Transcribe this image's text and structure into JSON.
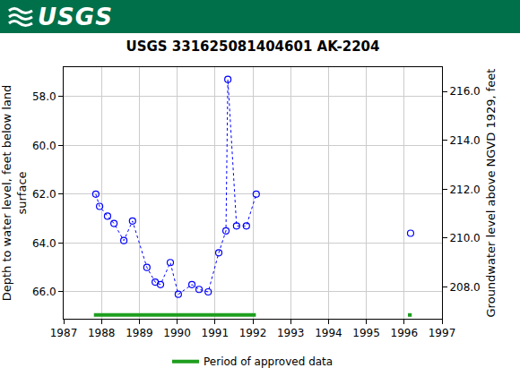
{
  "header": "USGS",
  "chart_data": {
    "type": "scatter",
    "title": "USGS 331625081404601 AK-2204",
    "y_label": [
      "Depth to water level, feet below land",
      "surface"
    ],
    "y2_label": "Groundwater level above NGVD 1929, feet",
    "x": [
      1987.85,
      1987.95,
      1988.16,
      1988.33,
      1988.59,
      1988.82,
      1989.2,
      1989.42,
      1989.56,
      1989.82,
      1990.03,
      1990.39,
      1990.58,
      1990.82,
      1991.1,
      1991.29,
      1991.34,
      1991.57,
      1991.83,
      1992.09,
      null,
      1996.17
    ],
    "values": [
      62.0,
      62.5,
      62.9,
      63.2,
      63.9,
      63.1,
      65.0,
      65.6,
      65.7,
      64.8,
      66.1,
      65.7,
      65.9,
      66.0,
      64.4,
      63.5,
      57.3,
      63.3,
      63.3,
      62.0,
      null,
      63.6
    ],
    "color": "#0000ff",
    "marker": "open-circle",
    "line_style": "dotted",
    "xlim": [
      1987,
      1997
    ],
    "xticks": [
      1987,
      1988,
      1989,
      1990,
      1991,
      1992,
      1993,
      1994,
      1995,
      1996,
      1997
    ],
    "ylim": [
      67.1,
      56.8
    ],
    "yticks": [
      {
        "value": 58,
        "label": "58.0"
      },
      {
        "value": 60,
        "label": "60.0"
      },
      {
        "value": 62,
        "label": "62.0"
      },
      {
        "value": 64,
        "label": "64.0"
      },
      {
        "value": 66,
        "label": "66.0"
      }
    ],
    "y2lim": [
      206.7,
      217.0
    ],
    "y2ticks": [
      {
        "value": 208,
        "label": "208.0"
      },
      {
        "value": 210,
        "label": "210.0"
      },
      {
        "value": 212,
        "label": "212.0"
      },
      {
        "value": 214,
        "label": "214.0"
      },
      {
        "value": 216,
        "label": "216.0"
      }
    ],
    "grid": true,
    "approved_periods": {
      "name": "Period of approved data",
      "color": "#1e9e1e",
      "x": [
        [
          1987.8,
          1992.08
        ],
        [
          1996.1,
          1996.2
        ]
      ]
    }
  }
}
